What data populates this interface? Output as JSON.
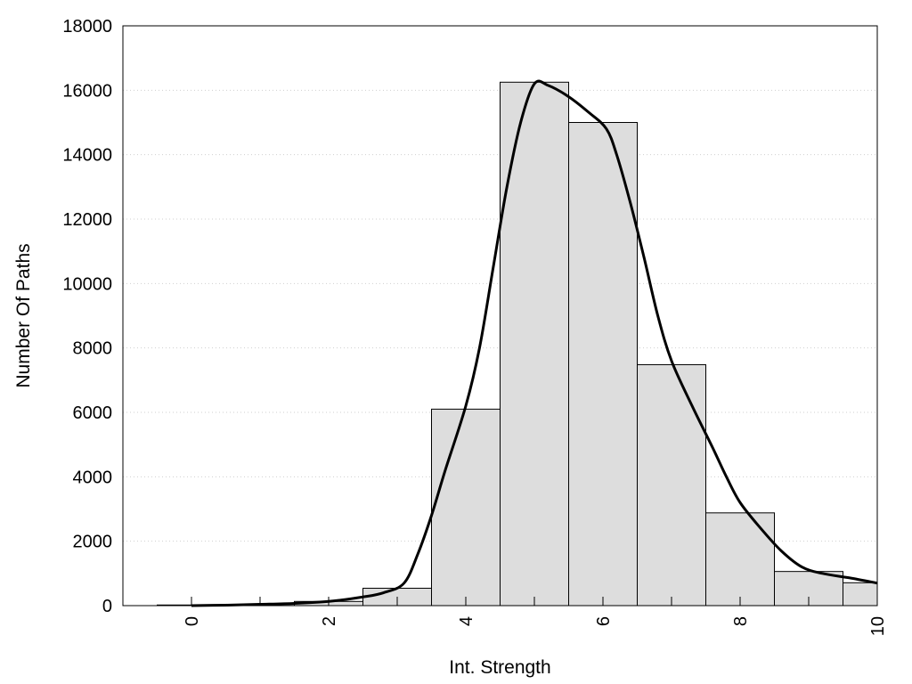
{
  "chart_data": {
    "type": "bar",
    "title": "",
    "xlabel": "Int. Strength",
    "ylabel": "Number Of Paths",
    "xlim": [
      -1,
      10
    ],
    "ylim": [
      0,
      18000
    ],
    "x_ticks": [
      "0",
      "2",
      "4",
      "6",
      "8",
      "10"
    ],
    "y_ticks": [
      "0",
      "2000",
      "4000",
      "6000",
      "8000",
      "10000",
      "12000",
      "14000",
      "16000",
      "18000"
    ],
    "grid": "horizontal-dotted",
    "bars": {
      "centers": [
        0,
        1,
        2,
        3,
        4,
        5,
        6,
        7,
        8,
        9,
        10
      ],
      "values": [
        20,
        40,
        130,
        540,
        6100,
        16250,
        15000,
        7480,
        2880,
        1060,
        710
      ],
      "color": "#dddddd",
      "edge_color": "#000000"
    },
    "curve": {
      "x": [
        0,
        0.5,
        1,
        1.5,
        2,
        2.5,
        2.8,
        3.1,
        3.3,
        3.5,
        3.7,
        4,
        4.2,
        4.4,
        4.6,
        4.8,
        5,
        5.2,
        5.5,
        5.8,
        6.05,
        6.2,
        6.4,
        6.6,
        6.8,
        7,
        7.3,
        7.6,
        7.8,
        8,
        8.3,
        8.6,
        8.9,
        9.2,
        9.6,
        10
      ],
      "y": [
        0,
        15,
        40,
        70,
        130,
        270,
        400,
        700,
        1600,
        2800,
        4200,
        6200,
        8000,
        10500,
        13000,
        15000,
        16200,
        16150,
        15800,
        15300,
        14800,
        14000,
        12500,
        10800,
        9000,
        7600,
        6200,
        4900,
        4000,
        3200,
        2400,
        1700,
        1200,
        1000,
        860,
        700
      ],
      "color": "#000000"
    }
  }
}
